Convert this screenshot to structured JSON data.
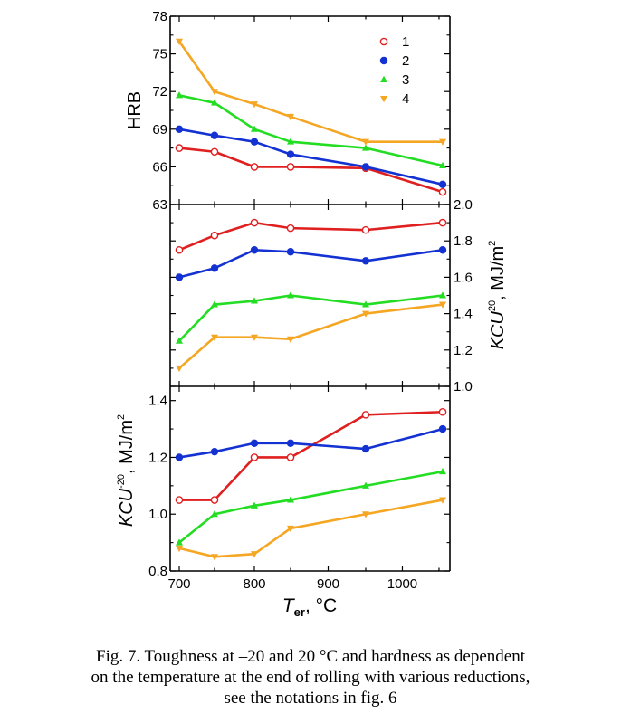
{
  "colors": {
    "series1": "#e02020",
    "series2": "#1432d2",
    "series3": "#22dd22",
    "series4": "#f5a623",
    "axis": "#000000"
  },
  "caption": {
    "line1": "Fig. 7. Toughness at –20 and 20 °C and hardness as dependent",
    "line2": "on the temperature at the end of rolling with various reductions,",
    "line3": "see the notations in fig. 6"
  },
  "chart_data": [
    {
      "type": "line",
      "panel": "top",
      "ylabel": "HRB",
      "ylim": [
        63,
        78
      ],
      "y_ticks": [
        "63",
        "66",
        "69",
        "72",
        "75",
        "78"
      ],
      "xlim": [
        700,
        1060
      ],
      "x": [
        700,
        750,
        800,
        850,
        950,
        1055
      ],
      "legend": {
        "position": "top-right",
        "entries": [
          "1",
          "2",
          "3",
          "4"
        ]
      },
      "series": [
        {
          "name": "1",
          "marker": "open-circle",
          "values": [
            67.5,
            67.2,
            66.0,
            66.0,
            65.9,
            64.0
          ]
        },
        {
          "name": "2",
          "marker": "filled-circle",
          "values": [
            69.0,
            68.5,
            68.0,
            67.0,
            66.0,
            64.6
          ]
        },
        {
          "name": "3",
          "marker": "triangle-up",
          "values": [
            71.7,
            71.1,
            69.0,
            68.0,
            67.5,
            66.1
          ]
        },
        {
          "name": "4",
          "marker": "triangle-down",
          "values": [
            76.0,
            72.0,
            71.0,
            70.0,
            68.0,
            68.0
          ]
        }
      ]
    },
    {
      "type": "line",
      "panel": "middle",
      "ylabel": "KCU²⁰, MJ/m²",
      "ylim": [
        1.0,
        2.0
      ],
      "y_ticks": [
        "1.0",
        "1.2",
        "1.4",
        "1.6",
        "1.8",
        "2.0"
      ],
      "xlim": [
        700,
        1060
      ],
      "x": [
        700,
        750,
        800,
        850,
        950,
        1055
      ],
      "series": [
        {
          "name": "1",
          "marker": "open-circle",
          "values": [
            1.75,
            1.83,
            1.9,
            1.87,
            1.86,
            1.9
          ]
        },
        {
          "name": "2",
          "marker": "filled-circle",
          "values": [
            1.6,
            1.65,
            1.75,
            1.74,
            1.69,
            1.75
          ]
        },
        {
          "name": "3",
          "marker": "triangle-up",
          "values": [
            1.25,
            1.45,
            1.47,
            1.5,
            1.45,
            1.5
          ]
        },
        {
          "name": "4",
          "marker": "triangle-down",
          "values": [
            1.1,
            1.27,
            1.27,
            1.26,
            1.4,
            1.45
          ]
        }
      ]
    },
    {
      "type": "line",
      "panel": "bottom",
      "ylabel": "KCU⁻²⁰, MJ/m²",
      "xlabel": "Ter, °C",
      "ylim": [
        0.8,
        1.45
      ],
      "y_ticks": [
        "0.8",
        "1.0",
        "1.2",
        "1.4"
      ],
      "xlim": [
        690,
        1060
      ],
      "x_ticks": [
        "700",
        "800",
        "900",
        "1000"
      ],
      "x": [
        700,
        750,
        800,
        850,
        950,
        1055
      ],
      "series": [
        {
          "name": "1",
          "marker": "open-circle",
          "values": [
            1.05,
            1.05,
            1.2,
            1.2,
            1.35,
            1.36
          ]
        },
        {
          "name": "2",
          "marker": "filled-circle",
          "values": [
            1.2,
            1.22,
            1.25,
            1.25,
            1.23,
            1.3
          ]
        },
        {
          "name": "3",
          "marker": "triangle-up",
          "values": [
            0.9,
            1.0,
            1.03,
            1.05,
            1.1,
            1.15
          ]
        },
        {
          "name": "4",
          "marker": "triangle-down",
          "values": [
            0.88,
            0.85,
            0.86,
            0.95,
            1.0,
            1.05
          ]
        }
      ]
    }
  ]
}
